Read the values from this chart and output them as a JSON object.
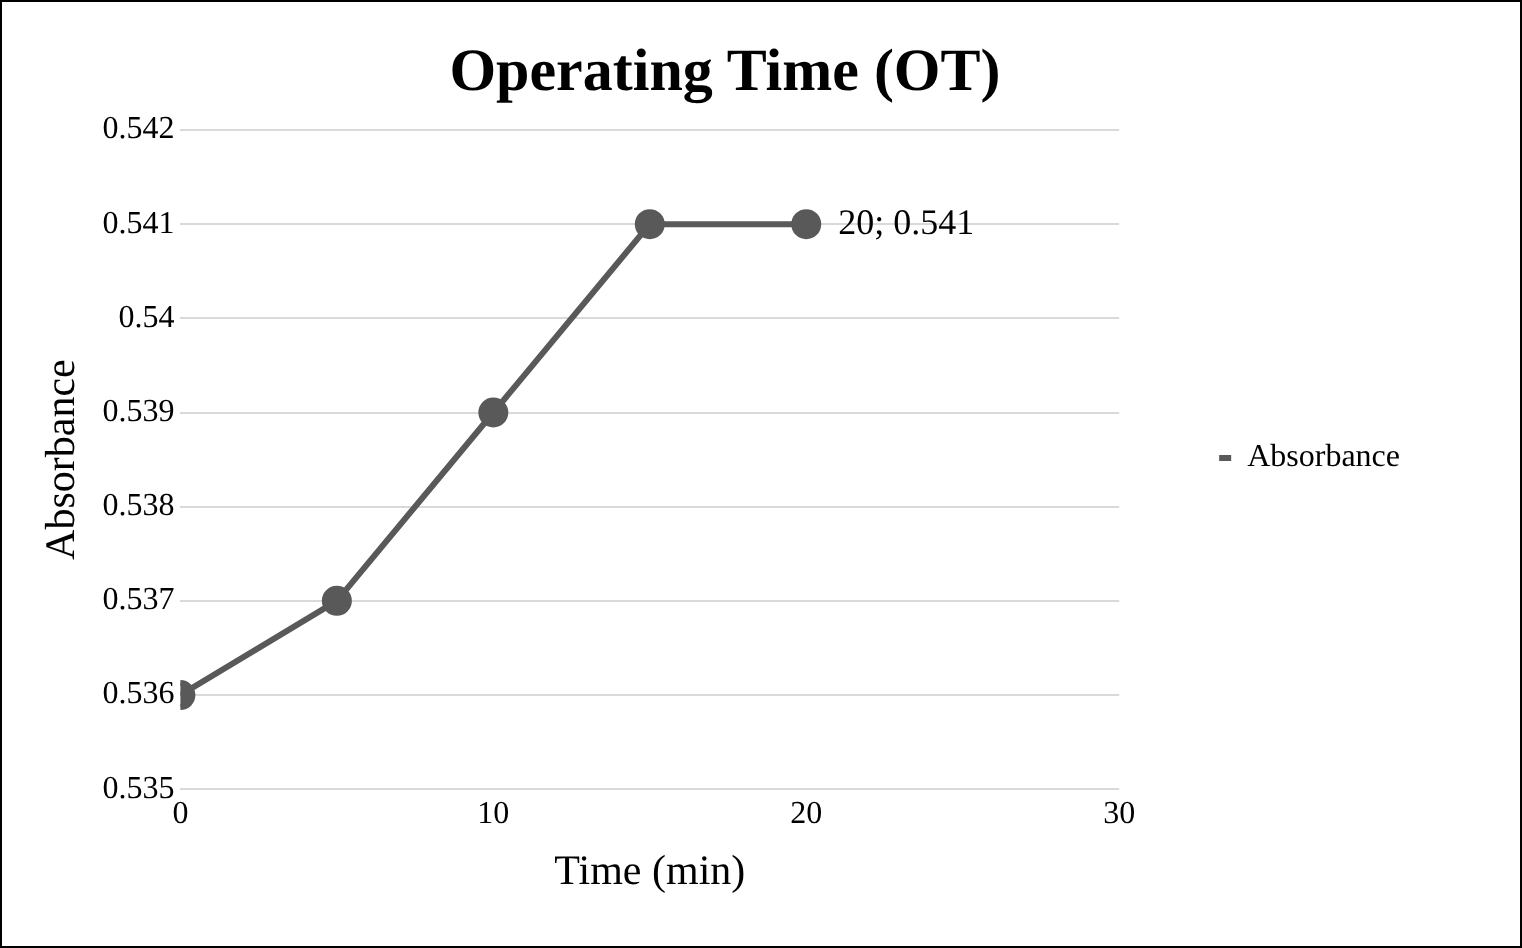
{
  "chart_data": {
    "type": "line",
    "title": "Operating Time (OT)",
    "xlabel": "Time (min)",
    "ylabel": "Absorbance",
    "x": [
      0,
      5,
      10,
      15,
      20
    ],
    "series": [
      {
        "name": "Absorbance",
        "color": "#595959",
        "values": [
          0.536,
          0.537,
          0.539,
          0.541,
          0.541
        ],
        "value_labels": [
          null,
          null,
          null,
          null,
          "20; 0.541"
        ]
      }
    ],
    "xlim": [
      0,
      30
    ],
    "xticks": [
      0,
      10,
      20,
      30
    ],
    "ylim": [
      0.535,
      0.542
    ],
    "yticks": [
      0.535,
      0.536,
      0.537,
      0.538,
      0.539,
      0.54,
      0.541,
      0.542
    ],
    "grid": "y",
    "legend": "right",
    "marker": "circle",
    "line_style": "solid"
  }
}
